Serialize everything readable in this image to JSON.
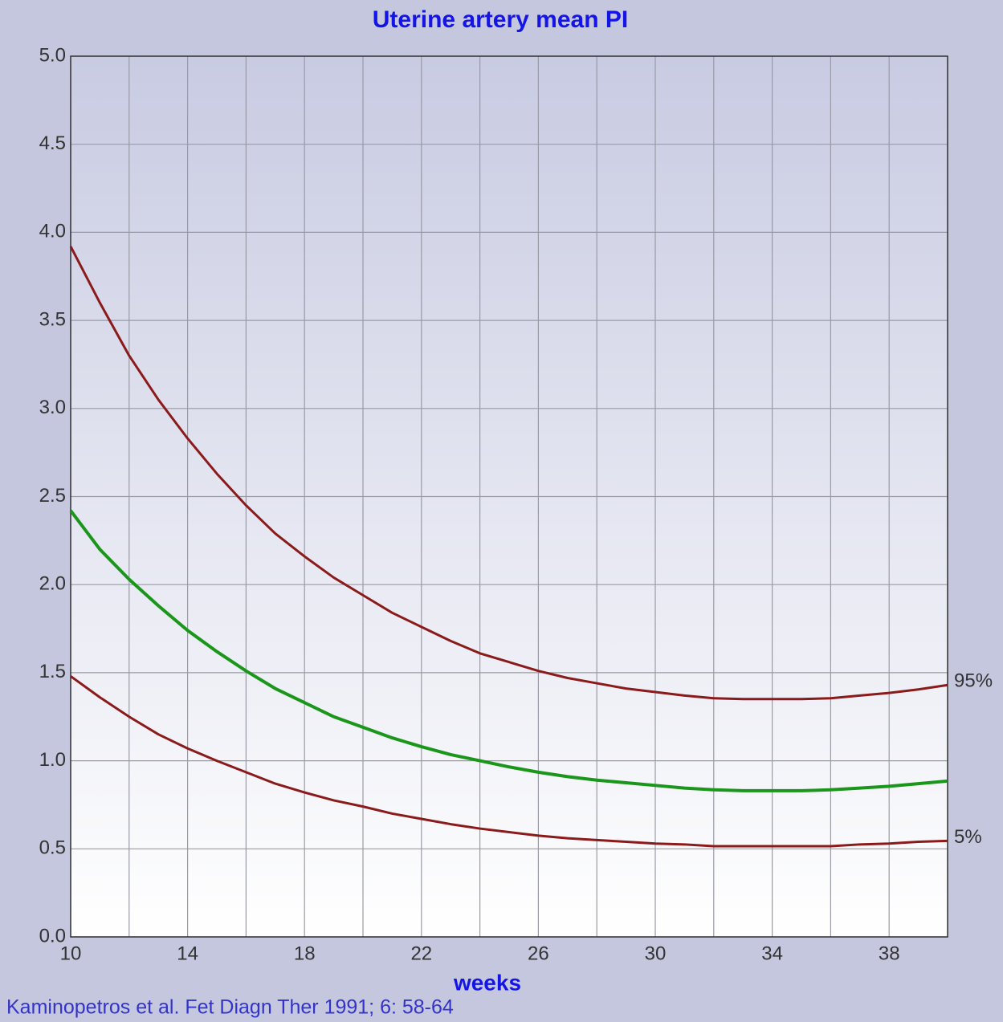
{
  "chart_data": {
    "type": "line",
    "title": "Uterine artery mean PI",
    "xlabel": "weeks",
    "source": "Kaminopetros et al. Fet Diagn Ther 1991; 6: 58-64",
    "x": [
      10,
      11,
      12,
      13,
      14,
      15,
      16,
      17,
      18,
      19,
      20,
      21,
      22,
      23,
      24,
      25,
      26,
      27,
      28,
      29,
      30,
      31,
      32,
      33,
      34,
      35,
      36,
      37,
      38,
      39,
      40
    ],
    "series": [
      {
        "name": "95%",
        "color": "#8b1a1a",
        "values": [
          3.92,
          3.6,
          3.3,
          3.05,
          2.83,
          2.63,
          2.45,
          2.29,
          2.16,
          2.04,
          1.94,
          1.84,
          1.76,
          1.68,
          1.61,
          1.56,
          1.51,
          1.47,
          1.44,
          1.41,
          1.39,
          1.37,
          1.355,
          1.35,
          1.35,
          1.35,
          1.355,
          1.37,
          1.385,
          1.405,
          1.43
        ]
      },
      {
        "color": "#1a961a",
        "values": [
          2.42,
          2.2,
          2.03,
          1.88,
          1.74,
          1.62,
          1.51,
          1.41,
          1.33,
          1.25,
          1.19,
          1.13,
          1.08,
          1.035,
          1.0,
          0.965,
          0.935,
          0.91,
          0.89,
          0.875,
          0.86,
          0.845,
          0.835,
          0.83,
          0.83,
          0.83,
          0.835,
          0.845,
          0.855,
          0.87,
          0.885
        ]
      },
      {
        "name": "5%",
        "color": "#8b1a1a",
        "values": [
          1.48,
          1.36,
          1.25,
          1.15,
          1.07,
          1.0,
          0.935,
          0.87,
          0.82,
          0.775,
          0.74,
          0.7,
          0.67,
          0.64,
          0.615,
          0.595,
          0.575,
          0.56,
          0.55,
          0.54,
          0.53,
          0.525,
          0.515,
          0.515,
          0.515,
          0.515,
          0.515,
          0.525,
          0.53,
          0.54,
          0.545
        ]
      }
    ],
    "xlim": [
      10,
      40
    ],
    "xticks": [
      10,
      14,
      18,
      22,
      26,
      30,
      34,
      38
    ],
    "xminorticks": [
      12,
      16,
      20,
      24,
      28,
      32,
      36,
      40
    ],
    "ylim": [
      0,
      5
    ],
    "yticks": [
      {
        "value": 0,
        "label": "0.0"
      },
      0.5,
      {
        "value": 1,
        "label": "1.0"
      },
      1.5,
      {
        "value": 2,
        "label": "2.0"
      },
      2.5,
      {
        "value": 3,
        "label": "3.0"
      },
      3.5,
      {
        "value": 4,
        "label": "4.0"
      },
      4.5,
      {
        "value": 5,
        "label": "5.0"
      }
    ],
    "grid": true
  }
}
